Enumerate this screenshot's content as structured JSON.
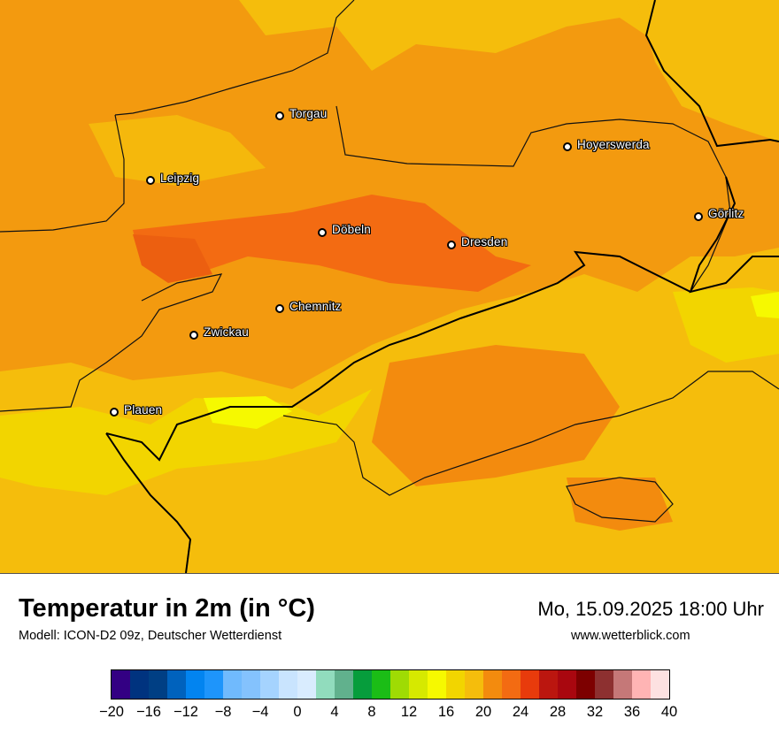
{
  "map": {
    "cities": [
      {
        "name": "Torgau"
      },
      {
        "name": "Hoyerswerda"
      },
      {
        "name": "Leipzig"
      },
      {
        "name": "Görlitz"
      },
      {
        "name": "Döbeln"
      },
      {
        "name": "Dresden"
      },
      {
        "name": "Chemnitz"
      },
      {
        "name": "Zwickau"
      },
      {
        "name": "Plauen"
      }
    ]
  },
  "footer": {
    "title": "Temperatur in 2m (in °C)",
    "subtitle": "Modell: ICON-D2 09z, Deutscher Wetterdienst",
    "datetime": "Mo, 15.09.2025 18:00 Uhr",
    "website": "www.wetterblick.com"
  },
  "legend": {
    "colors": [
      "#330083",
      "#00337f",
      "#003f84",
      "#0062bd",
      "#0284f0",
      "#1e95fb",
      "#70bafd",
      "#84c2fd",
      "#a5d3fe",
      "#c9e4fe",
      "#d9ecfe",
      "#91dcbd",
      "#61b18d",
      "#069d3c",
      "#1bbd16",
      "#9fdb04",
      "#d6e900",
      "#f6f900",
      "#f2d500",
      "#f5bd0c",
      "#f38b0e",
      "#f36b12",
      "#e83b0c",
      "#bb160f",
      "#a9070f",
      "#7d0000",
      "#8d3030",
      "#c57878",
      "#ffb4b4",
      "#fde1e1"
    ],
    "ticks": [
      "−20",
      "−16",
      "−12",
      "−8",
      "−4",
      "0",
      "4",
      "8",
      "12",
      "16",
      "20",
      "24",
      "28",
      "32",
      "36",
      "40"
    ]
  }
}
